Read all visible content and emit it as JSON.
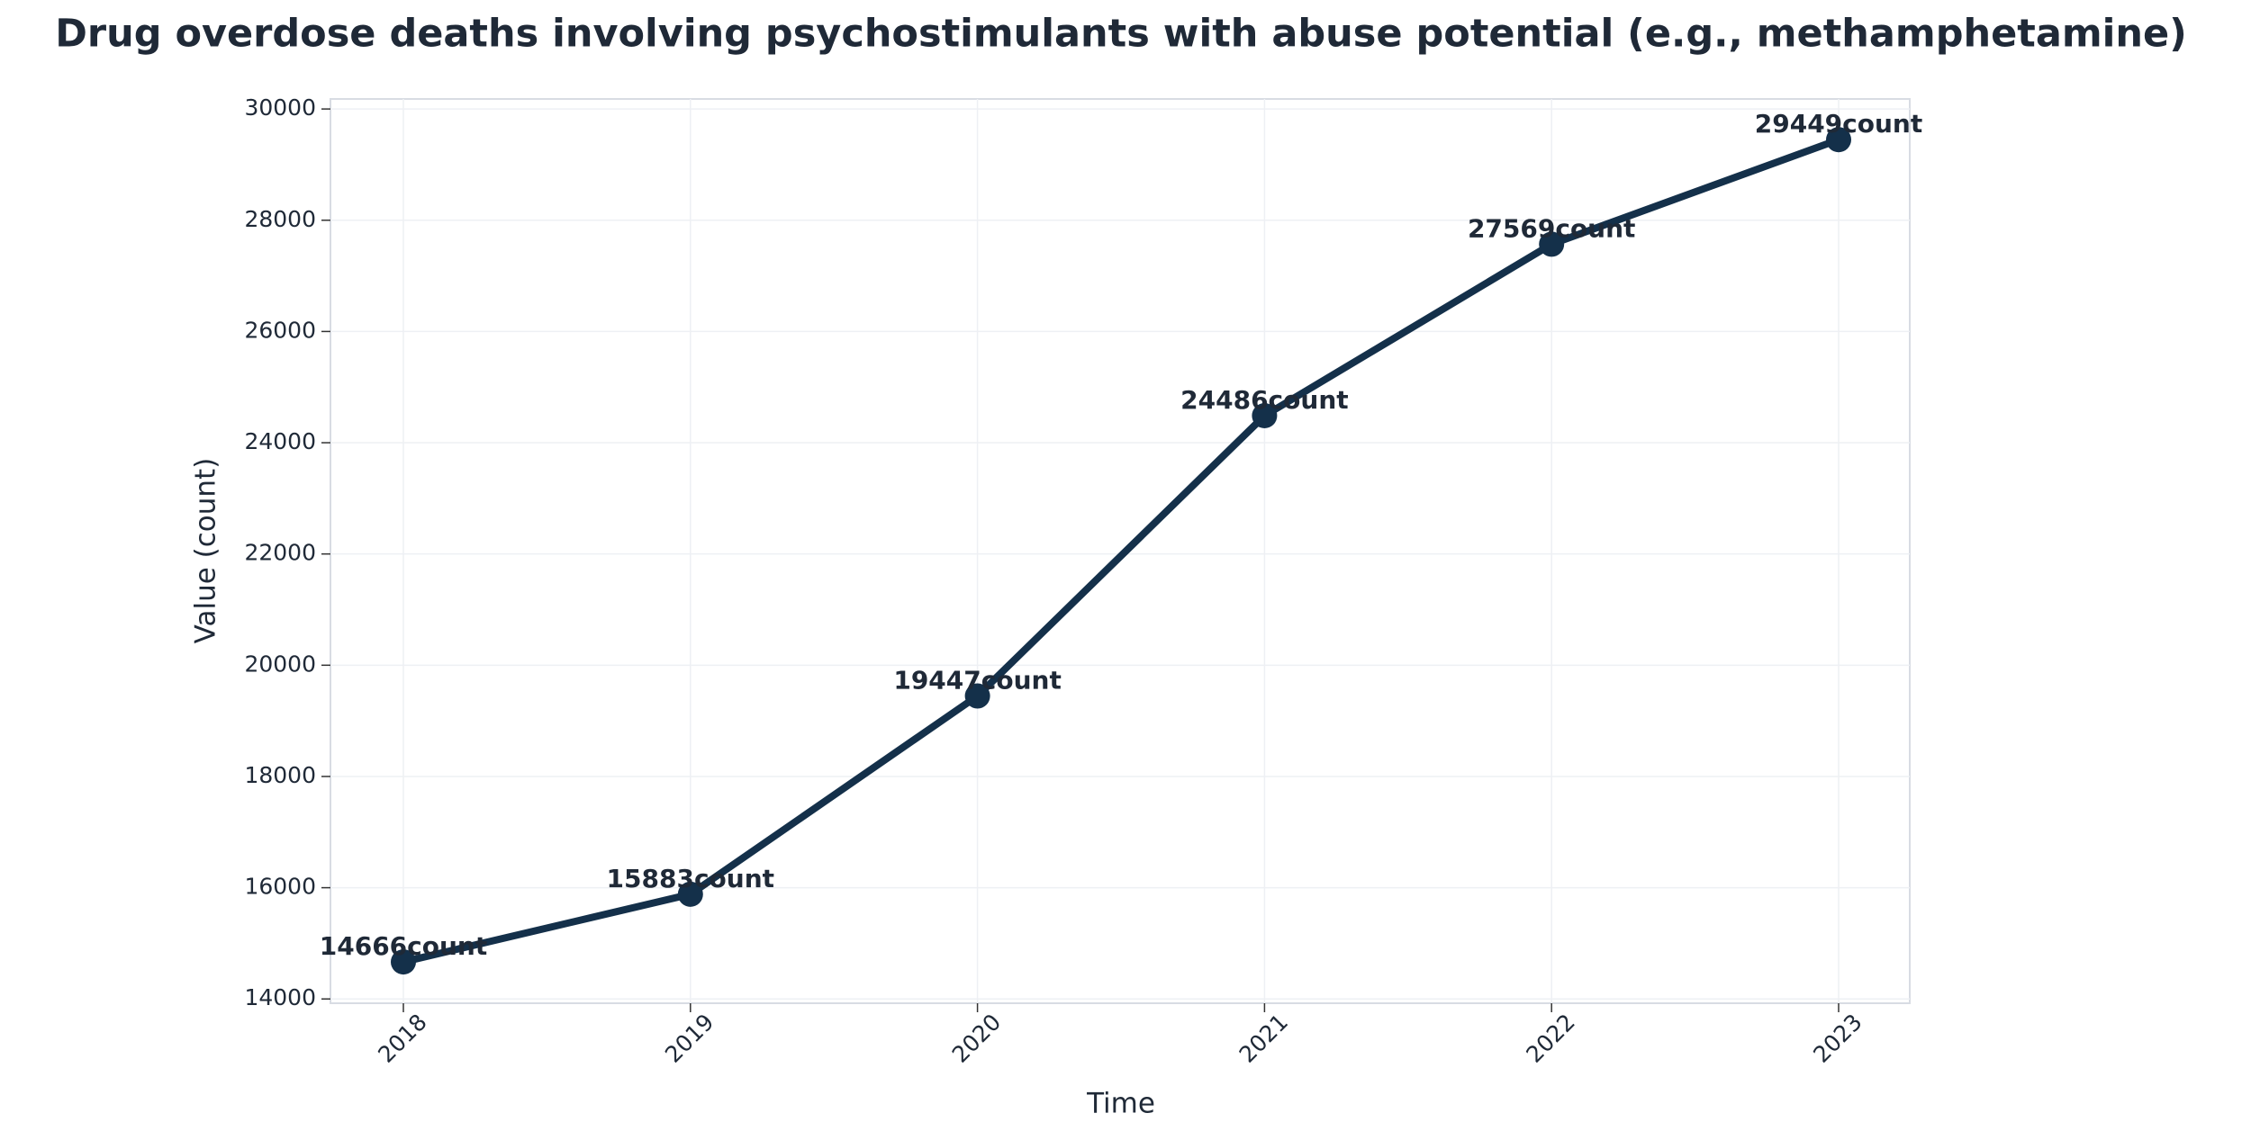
{
  "chart_data": {
    "type": "line",
    "title": "Drug overdose deaths involving psychostimulants with abuse potential (e.g., methamphetamine)",
    "xlabel": "Time",
    "ylabel": "Value (count)",
    "categories": [
      "2018",
      "2019",
      "2020",
      "2021",
      "2022",
      "2023"
    ],
    "series": [
      {
        "color": "#14304a",
        "values": [
          14666,
          15883,
          19447,
          24486,
          27569,
          29449
        ],
        "value_labels": [
          "14666count",
          "15883count",
          "19447count",
          "24486count",
          "27569count",
          "29449count"
        ]
      }
    ],
    "ylim": [
      13923,
      30180
    ],
    "yticks": [
      14000,
      16000,
      18000,
      20000,
      22000,
      24000,
      26000,
      28000,
      30000
    ],
    "grid": true
  }
}
